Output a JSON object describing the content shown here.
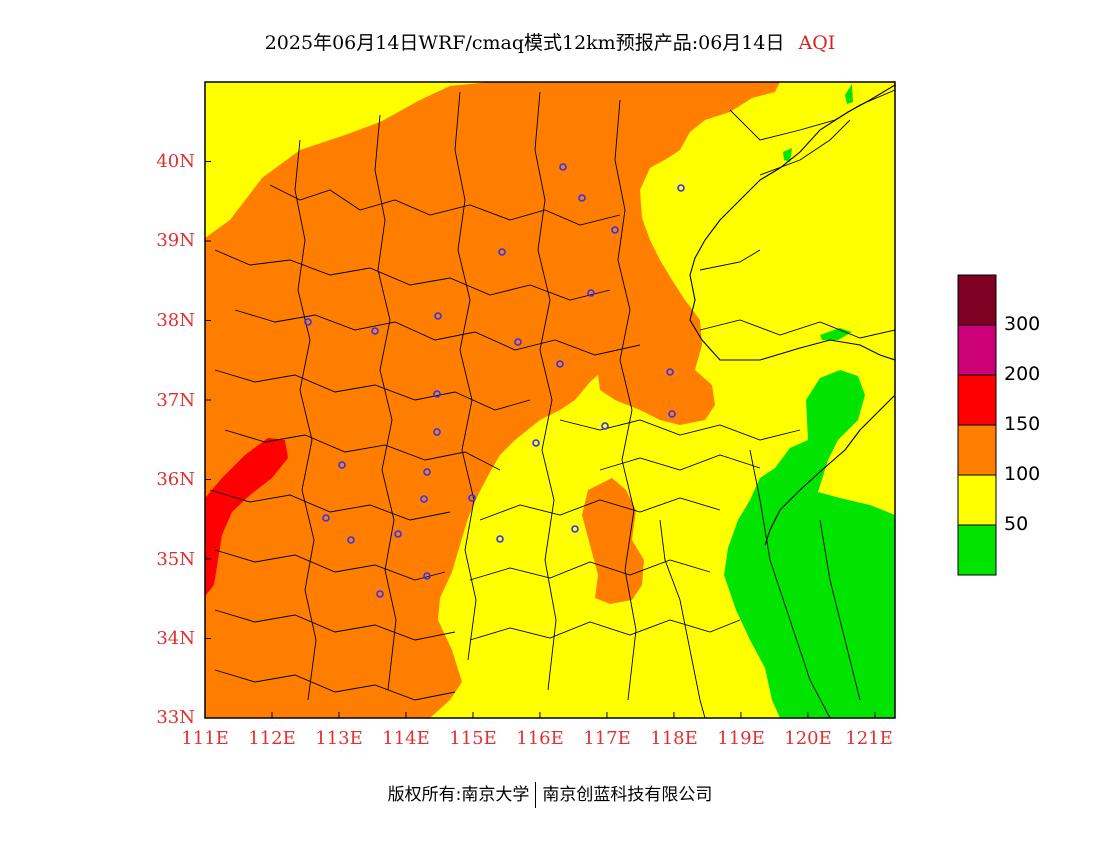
{
  "title": {
    "main": "2025年06月14日WRF/cmaq模式12km预报产品:06月14日",
    "product": "AQI"
  },
  "axes": {
    "y_ticks": [
      "33N",
      "34N",
      "35N",
      "36N",
      "37N",
      "38N",
      "39N",
      "40N"
    ],
    "x_ticks": [
      "111E",
      "112E",
      "113E",
      "114E",
      "115E",
      "116E",
      "117E",
      "118E",
      "119E",
      "120E",
      "121E"
    ],
    "lon_range": [
      111,
      121.3
    ],
    "lat_range": [
      33,
      41
    ]
  },
  "legend": {
    "labels": [
      "300",
      "200",
      "150",
      "100",
      "50"
    ],
    "bins": [
      {
        "color": "#00e400",
        "range": "0-50"
      },
      {
        "color": "#ffff00",
        "range": "50-100"
      },
      {
        "color": "#ff7e00",
        "range": "100-150"
      },
      {
        "color": "#ff0000",
        "range": "150-200"
      },
      {
        "color": "#cc0077",
        "range": "200-300"
      },
      {
        "color": "#7e0023",
        "range": ">300"
      }
    ]
  },
  "footer": {
    "left": "版权所有:南京大学",
    "right": "南京创蓝科技有限公司"
  },
  "colors": {
    "tick_text": "#e03030",
    "product_text": "#e02020",
    "city_marker": "#3030ff"
  }
}
